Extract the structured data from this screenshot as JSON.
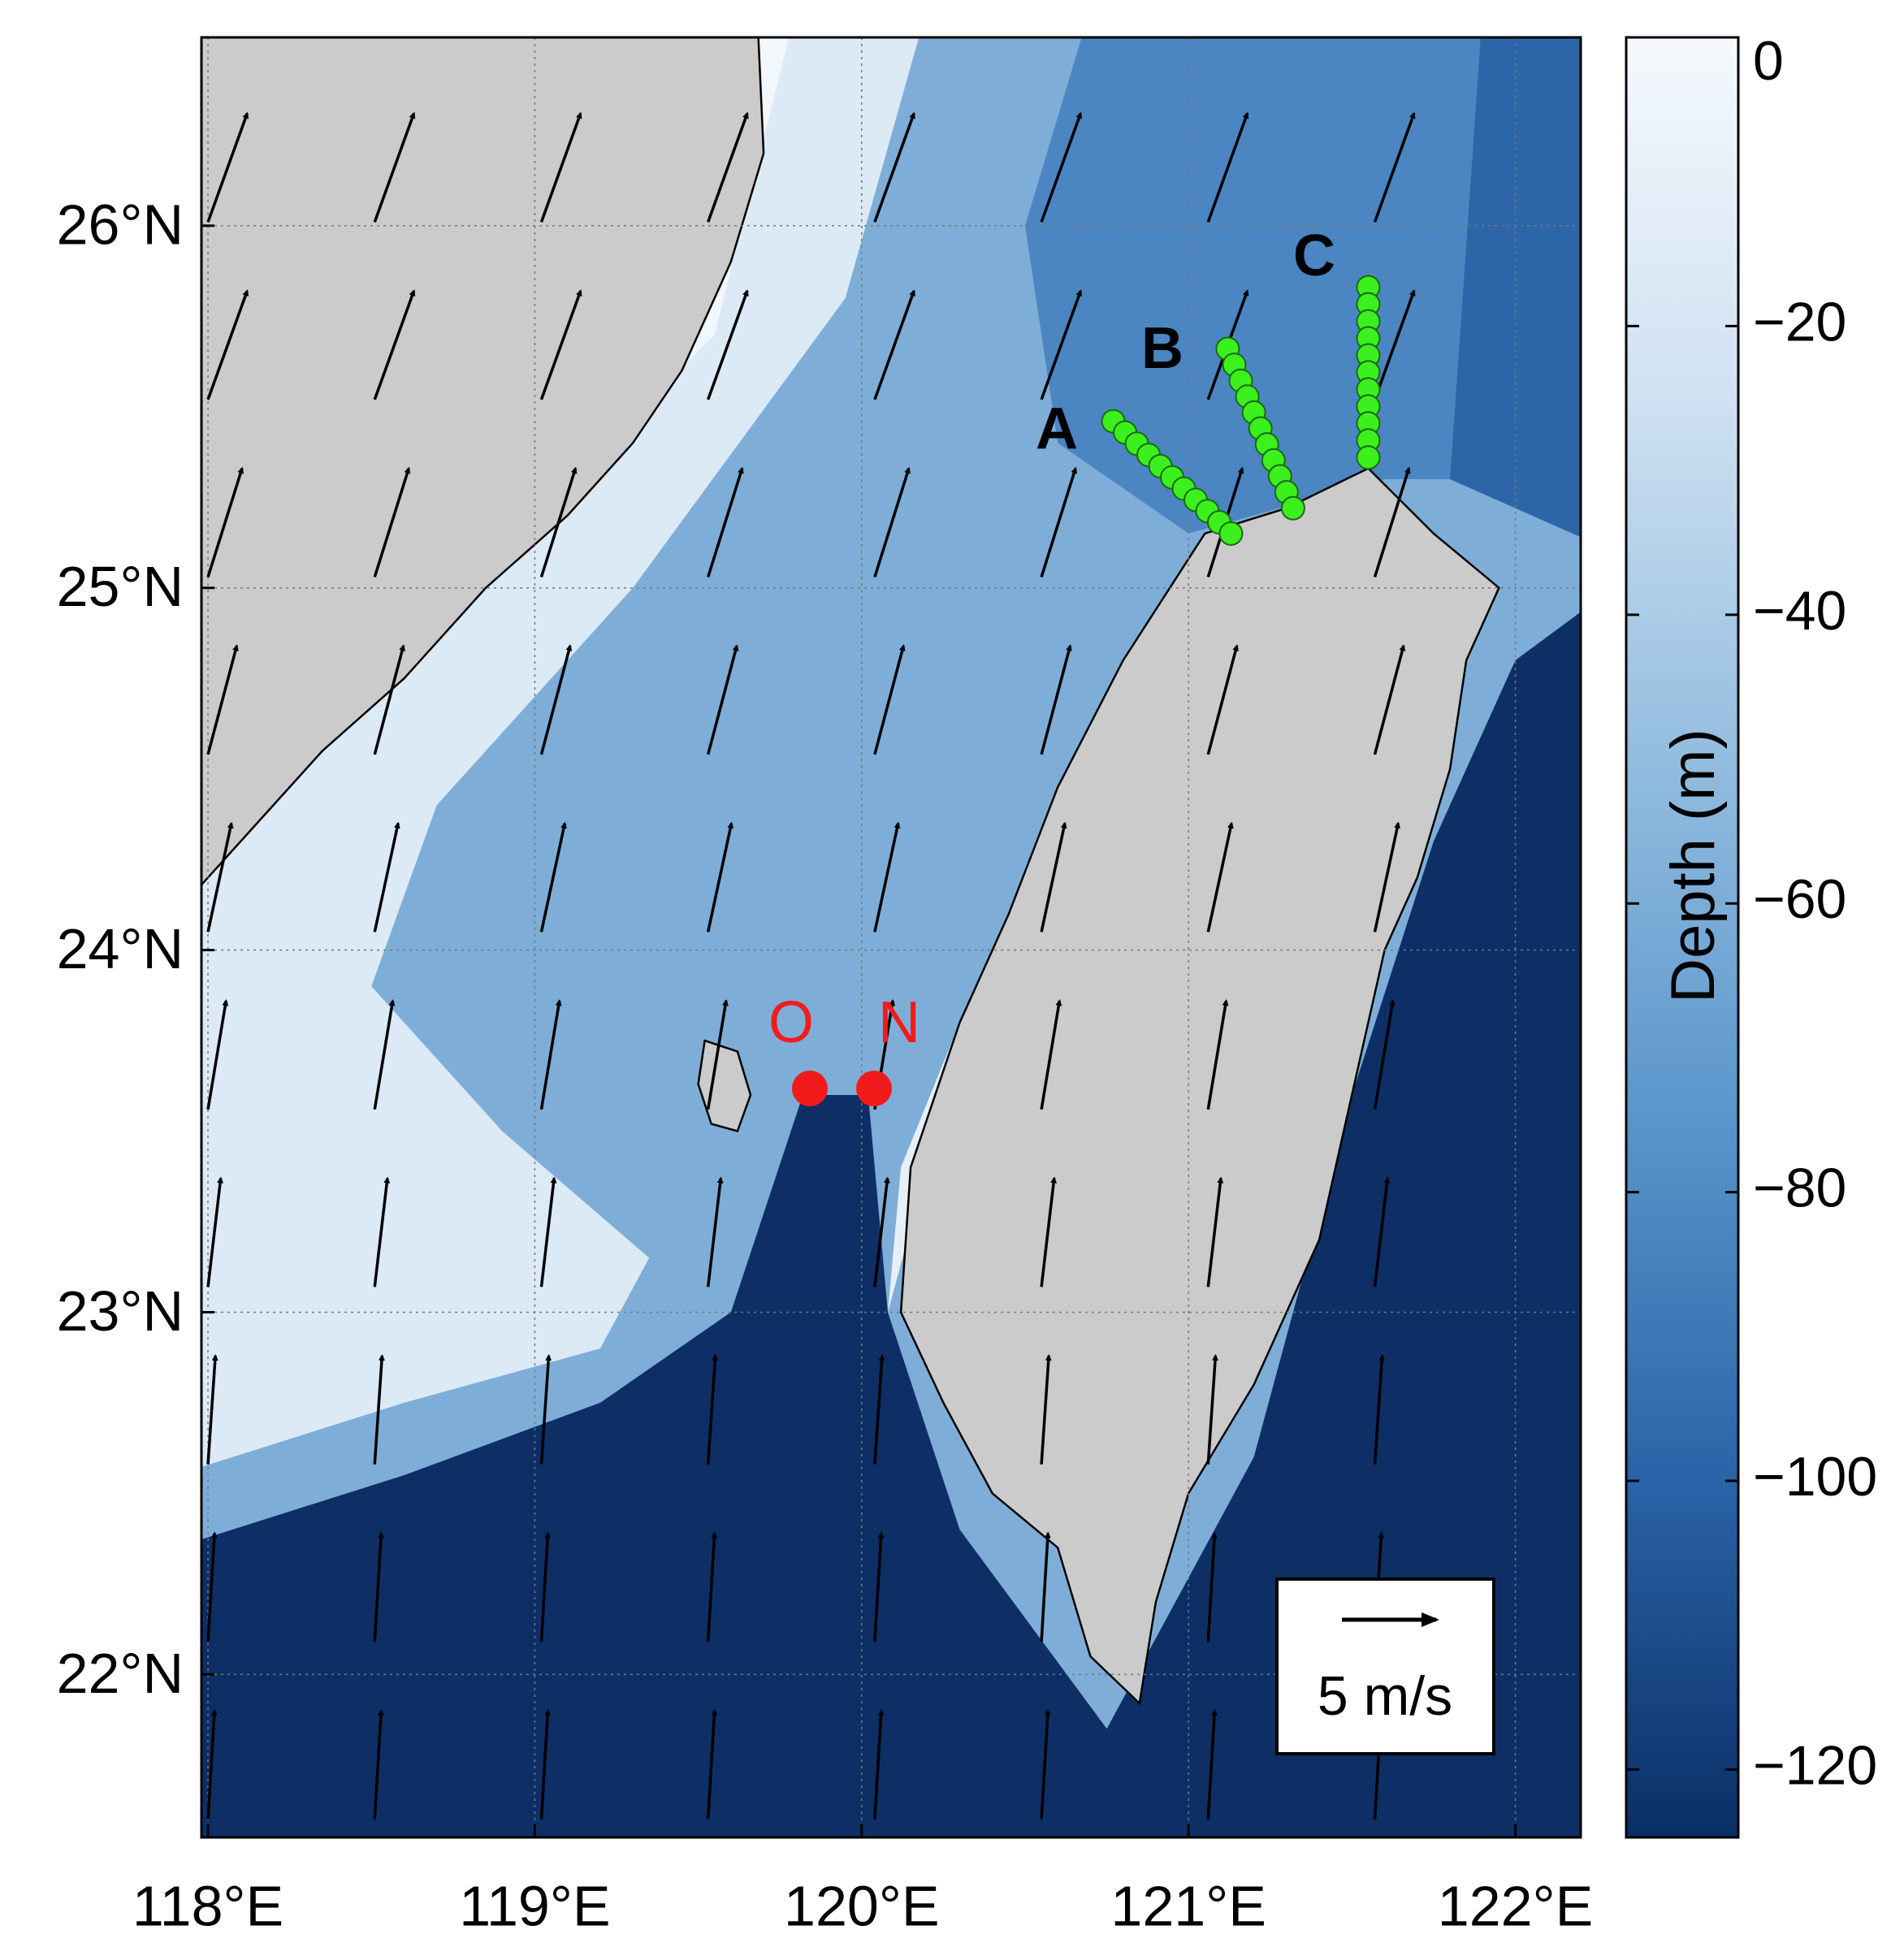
{
  "map": {
    "xlim": [
      117.98,
      122.2
    ],
    "ylim": [
      21.55,
      26.52
    ],
    "xticks": [
      {
        "value": 118,
        "label": "118°E"
      },
      {
        "value": 119,
        "label": "119°E"
      },
      {
        "value": 120,
        "label": "120°E"
      },
      {
        "value": 121,
        "label": "121°E"
      },
      {
        "value": 122,
        "label": "122°E"
      }
    ],
    "yticks": [
      {
        "value": 22,
        "label": "22°N"
      },
      {
        "value": 23,
        "label": "23°N"
      },
      {
        "value": 24,
        "label": "24°N"
      },
      {
        "value": 25,
        "label": "25°N"
      },
      {
        "value": 26,
        "label": "26°N"
      }
    ],
    "grid": true,
    "colorbar": {
      "label": "Depth (m)",
      "lim": [
        0,
        -124.7
      ],
      "ticks": [
        0,
        {
          "value": -20,
          "label": "−20"
        },
        {
          "value": -40,
          "label": "−40"
        },
        {
          "value": -60,
          "label": "−60"
        },
        {
          "value": -80,
          "label": "−80"
        },
        {
          "value": -100,
          "label": "−100"
        },
        {
          "value": -120,
          "label": "−120"
        }
      ]
    },
    "transects": [
      "A",
      "B",
      "C"
    ],
    "points": [
      "O",
      "N"
    ],
    "scale_label": "5 m/s"
  }
}
